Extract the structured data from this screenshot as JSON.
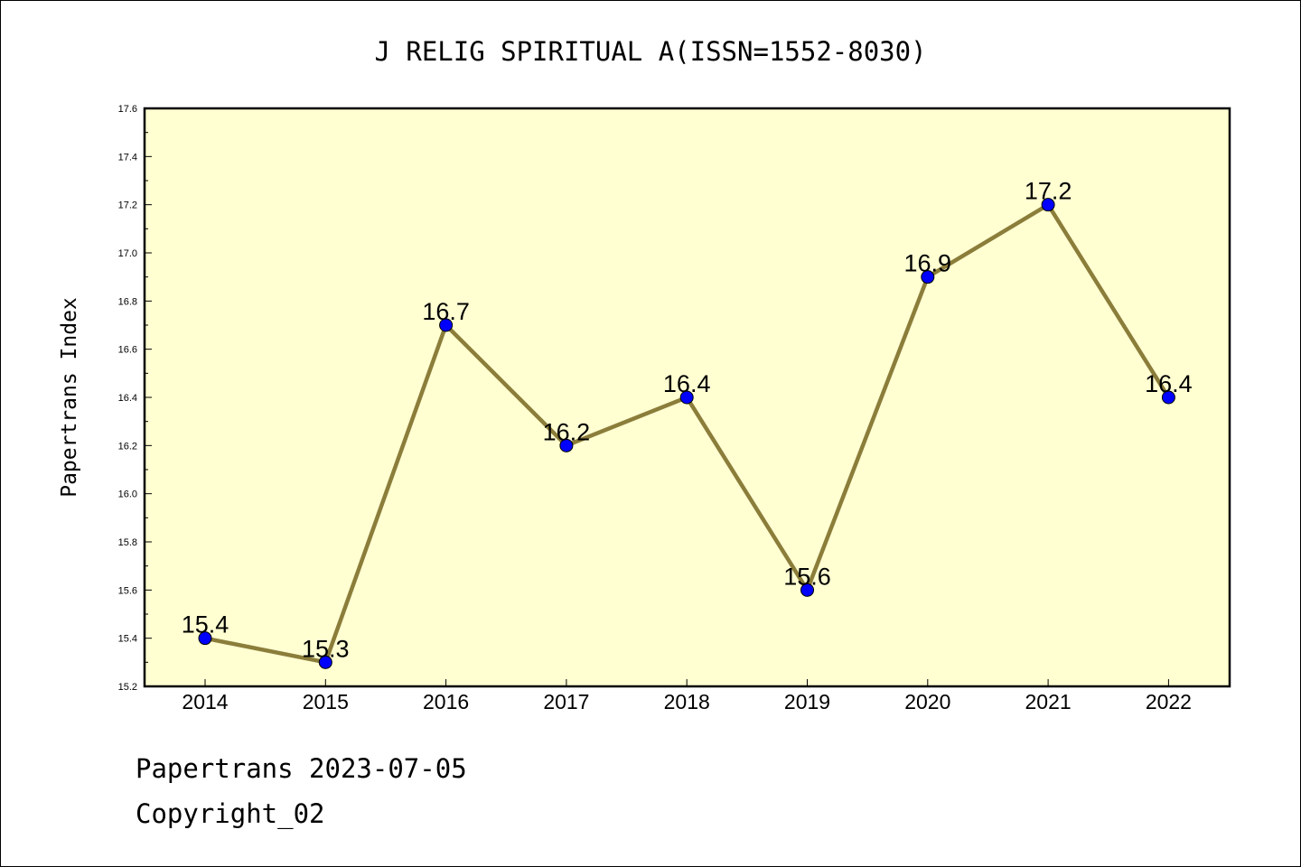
{
  "footer": {
    "line1": "Papertrans 2023-07-05",
    "line2": "Copyright_02"
  },
  "colors": {
    "plot_background": "#ffffd2",
    "line": "#8b7d3a",
    "marker": "#0000ff"
  },
  "chart_data": {
    "type": "line",
    "title": "J RELIG SPIRITUAL A(ISSN=1552-8030)",
    "xlabel": "",
    "ylabel": "Papertrans Index",
    "categories": [
      "2014",
      "2015",
      "2016",
      "2017",
      "2018",
      "2019",
      "2020",
      "2021",
      "2022"
    ],
    "values": [
      15.4,
      15.3,
      16.7,
      16.2,
      16.4,
      15.6,
      16.9,
      17.2,
      16.4
    ],
    "data_labels": [
      "15.4",
      "15.3",
      "16.7",
      "16.2",
      "16.4",
      "15.6",
      "16.9",
      "17.2",
      "16.4"
    ],
    "ylim": [
      15.2,
      17.6
    ],
    "yticks": [
      "15.2",
      "15.4",
      "15.6",
      "15.8",
      "16.0",
      "16.2",
      "16.4",
      "16.6",
      "16.8",
      "17.0",
      "17.2",
      "17.4",
      "17.6"
    ],
    "grid": false,
    "legend": "none"
  }
}
